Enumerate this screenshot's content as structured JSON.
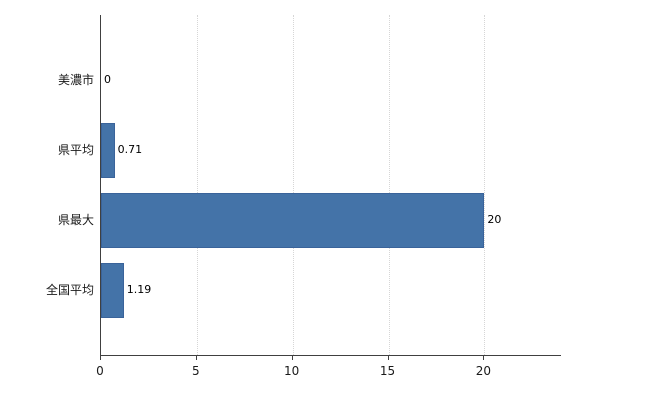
{
  "chart_data": {
    "type": "bar",
    "orientation": "horizontal",
    "title": "",
    "xlabel": "",
    "ylabel": "",
    "categories": [
      "美濃市",
      "県平均",
      "県最大",
      "全国平均"
    ],
    "values": [
      0,
      0.71,
      20,
      1.19
    ],
    "value_labels": [
      "0",
      "0.71",
      "20",
      "1.19"
    ],
    "x_ticks": [
      0,
      5,
      10,
      15,
      20
    ],
    "xlim": [
      0,
      24
    ],
    "grid": "vertical-dotted",
    "legend": "none",
    "bar_color": "#4473a8",
    "bar_border_color": "#3a639a",
    "axis_color": "#404040",
    "grid_color": "#d6d6d6"
  }
}
